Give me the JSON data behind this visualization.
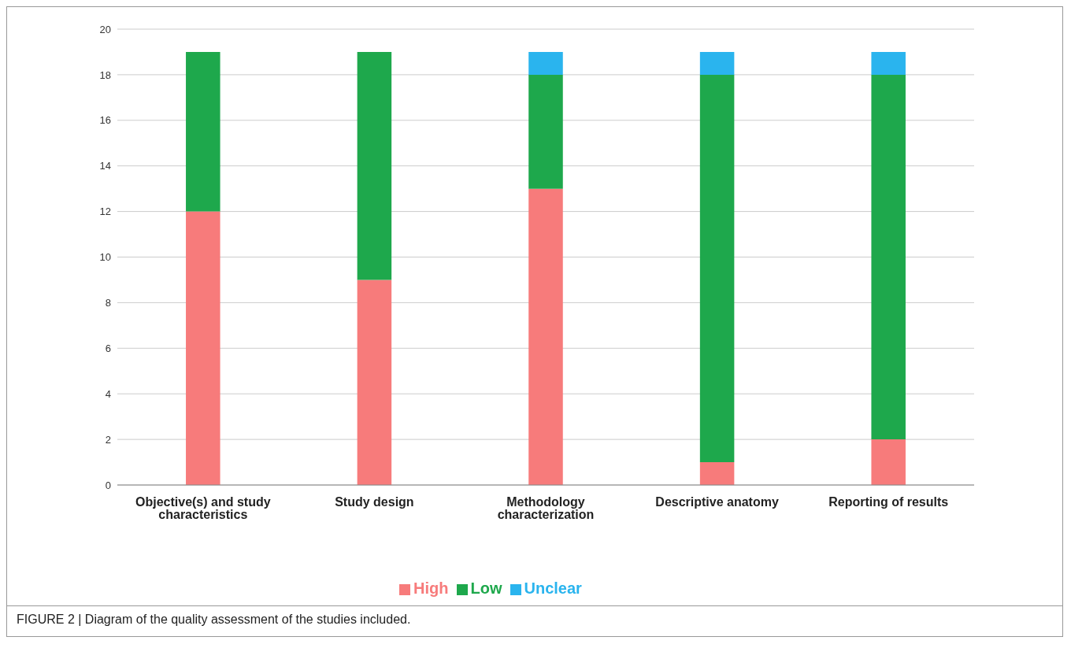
{
  "chart_data": {
    "type": "bar",
    "stacked": true,
    "categories": [
      "Objective(s) and study characteristics",
      "Study design",
      "Methodology characterization",
      "Descriptive anatomy",
      "Reporting of results"
    ],
    "series": [
      {
        "name": "High",
        "color": "#f77b7b",
        "values": [
          12,
          9,
          13,
          1,
          2
        ]
      },
      {
        "name": "Low",
        "color": "#1ea84c",
        "values": [
          7,
          10,
          5,
          17,
          16
        ]
      },
      {
        "name": "Unclear",
        "color": "#2ab4ee",
        "values": [
          0,
          0,
          1,
          1,
          1
        ]
      }
    ],
    "ylim": [
      0,
      20
    ],
    "yticks": [
      0,
      2,
      4,
      6,
      8,
      10,
      12,
      14,
      16,
      18,
      20
    ],
    "grid": "y",
    "legend": "bottom",
    "annotations": [
      "FIGURE 2 | Diagram of the quality assessment of the studies included."
    ]
  }
}
